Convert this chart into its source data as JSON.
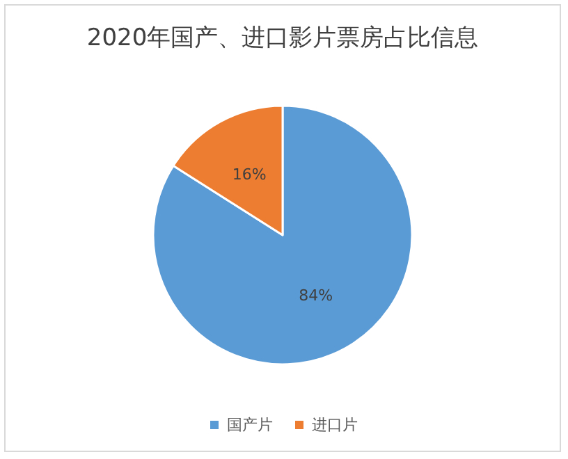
{
  "chart_data": {
    "type": "pie",
    "title": "2020年国产、进口影片票房占比信息",
    "categories": [
      "国产片",
      "进口片"
    ],
    "values": [
      84,
      16
    ],
    "colors": [
      "#5b9bd5",
      "#ed7d31"
    ],
    "value_labels": [
      "84%",
      "16%"
    ],
    "legend": "bottom"
  }
}
